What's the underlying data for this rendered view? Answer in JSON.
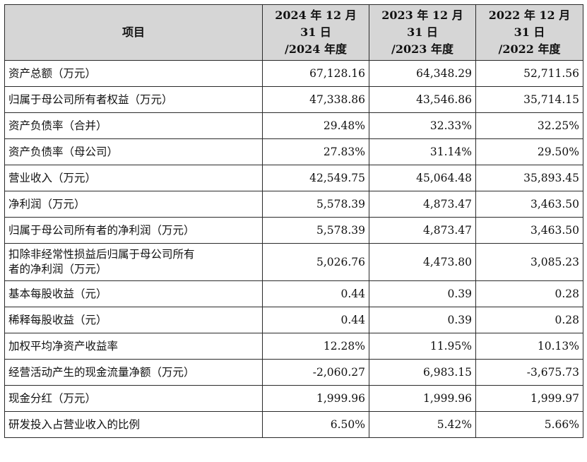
{
  "header": {
    "item_label": "项目",
    "columns": [
      [
        "2024 年 12 月",
        "31 日",
        "/2024 年度"
      ],
      [
        "2023 年 12 月",
        "31 日",
        "/2023 年度"
      ],
      [
        "2022 年 12 月",
        "31 日",
        "/2022 年度"
      ]
    ]
  },
  "rows": [
    {
      "label": "资产总额（万元）",
      "values": [
        "67,128.16",
        "64,348.29",
        "52,711.56"
      ]
    },
    {
      "label": "归属于母公司所有者权益（万元）",
      "values": [
        "47,338.86",
        "43,546.86",
        "35,714.15"
      ]
    },
    {
      "label": "资产负债率（合并）",
      "values": [
        "29.48%",
        "32.33%",
        "32.25%"
      ]
    },
    {
      "label": "资产负债率（母公司）",
      "values": [
        "27.83%",
        "31.14%",
        "29.50%"
      ]
    },
    {
      "label": "营业收入（万元）",
      "values": [
        "42,549.75",
        "45,064.48",
        "35,893.45"
      ]
    },
    {
      "label": "净利润（万元）",
      "values": [
        "5,578.39",
        "4,873.47",
        "3,463.50"
      ]
    },
    {
      "label": "归属于母公司所有者的净利润（万元）",
      "values": [
        "5,578.39",
        "4,873.47",
        "3,463.50"
      ]
    },
    {
      "label": [
        "扣除非经常性损益后归属于母公司所有",
        "者的净利润（万元）"
      ],
      "values": [
        "5,026.76",
        "4,473.80",
        "3,085.23"
      ]
    },
    {
      "label": "基本每股收益（元）",
      "values": [
        "0.44",
        "0.39",
        "0.28"
      ]
    },
    {
      "label": "稀释每股收益（元）",
      "values": [
        "0.44",
        "0.39",
        "0.28"
      ]
    },
    {
      "label": "加权平均净资产收益率",
      "values": [
        "12.28%",
        "11.95%",
        "10.13%"
      ]
    },
    {
      "label": "经营活动产生的现金流量净额（万元）",
      "values": [
        "-2,060.27",
        "6,983.15",
        "-3,675.73"
      ]
    },
    {
      "label": "现金分红（万元）",
      "values": [
        "1,999.96",
        "1,999.96",
        "1,999.97"
      ]
    },
    {
      "label": "研发投入占营业收入的比例",
      "values": [
        "6.50%",
        "5.42%",
        "5.66%"
      ]
    }
  ]
}
